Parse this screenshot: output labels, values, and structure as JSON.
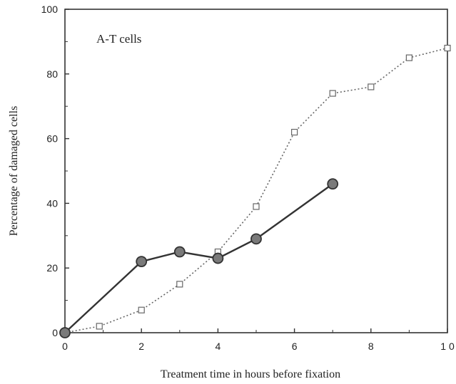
{
  "chart_data": {
    "type": "line",
    "title": "",
    "annotation": "A-T cells",
    "xlabel": "Treatment time in hours before fixation",
    "ylabel": "Percentage of damaged cells",
    "xlim": [
      0,
      10
    ],
    "ylim": [
      0,
      100
    ],
    "x_ticks": [
      0,
      2,
      4,
      6,
      8,
      10
    ],
    "x_tick_labels": [
      "0",
      "2",
      "4",
      "6",
      "8",
      "1 0"
    ],
    "y_ticks": [
      0,
      20,
      40,
      60,
      80,
      100
    ],
    "y_tick_labels": [
      "0",
      "20",
      "40",
      "60",
      "80",
      "100"
    ],
    "grid": false,
    "series": [
      {
        "style": "solid line, filled grey circles",
        "color": "#333333",
        "marker_fill": "#7a7a7a",
        "x": [
          0,
          2,
          3,
          4,
          5,
          7
        ],
        "y": [
          0,
          22,
          25,
          23,
          29,
          46
        ]
      },
      {
        "style": "dotted line, open squares",
        "color": "#666666",
        "marker_fill": "#ffffff",
        "x": [
          0,
          0.9,
          2,
          3,
          4,
          5,
          6,
          7,
          8,
          9,
          10
        ],
        "y": [
          0,
          2,
          7,
          15,
          25,
          39,
          62,
          74,
          76,
          85,
          88
        ]
      }
    ]
  }
}
